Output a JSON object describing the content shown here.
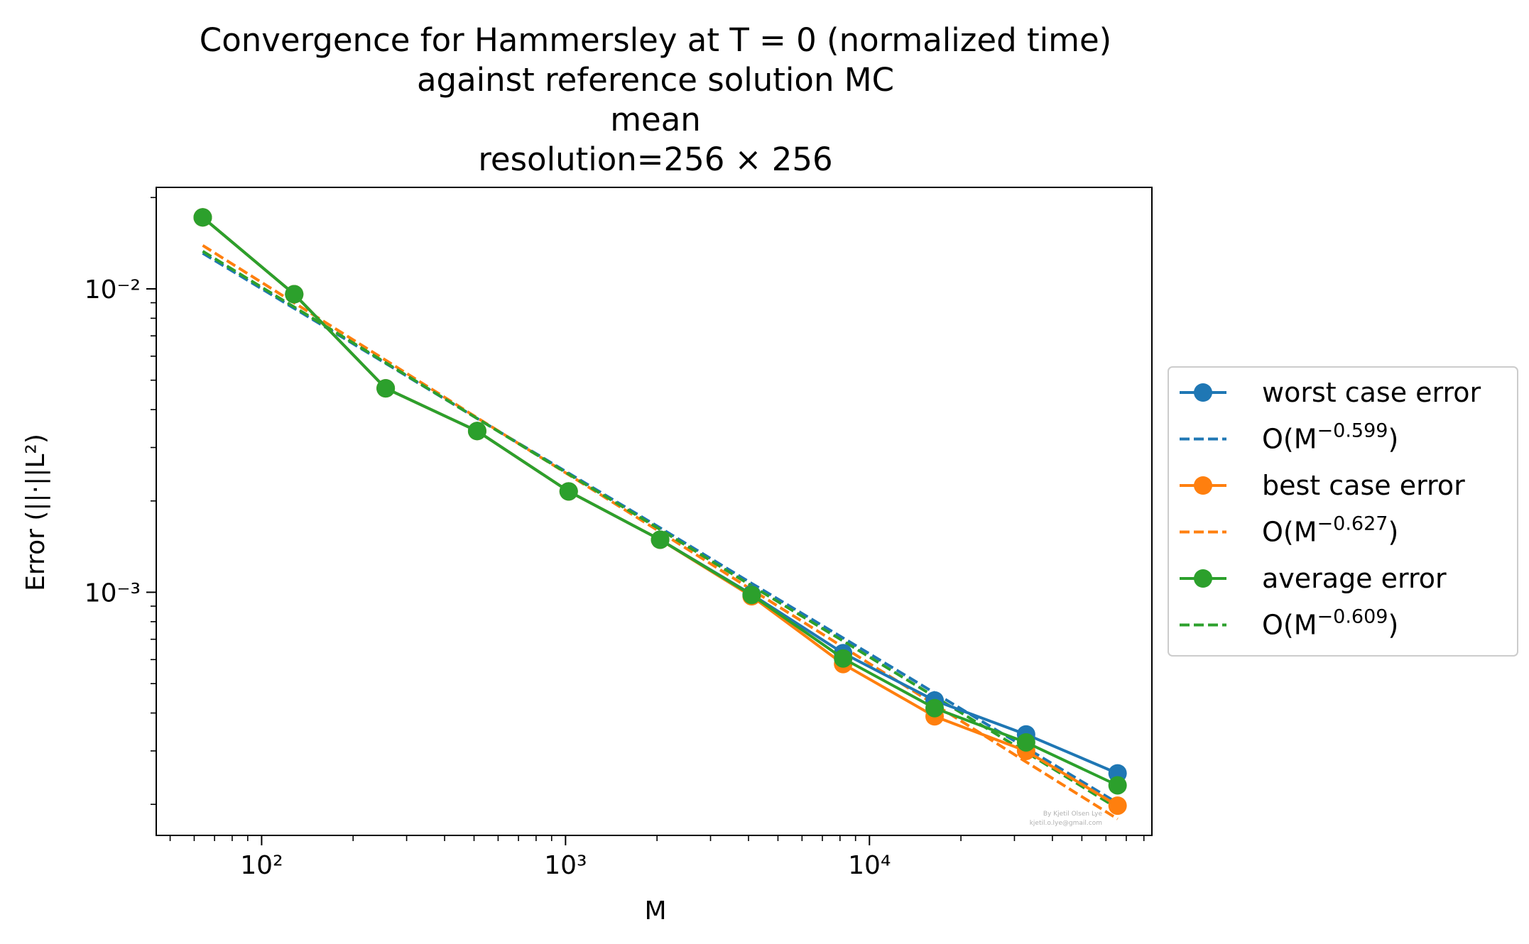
{
  "chart_data": {
    "type": "line",
    "title_lines": [
      "Convergence for Hammersley at T = 0 (normalized time)",
      "against reference solution MC",
      "mean",
      "resolution=256 × 256"
    ],
    "xlabel": "M",
    "ylabel": "Error (||·||L²)",
    "xscale": "log",
    "yscale": "log",
    "xlim": [
      45,
      85000
    ],
    "ylim": [
      0.000158,
      0.0216
    ],
    "x_ticks": [
      100,
      1000,
      10000
    ],
    "x_tick_labels": [
      "10²",
      "10³",
      "10⁴"
    ],
    "y_ticks": [
      0.001,
      0.01
    ],
    "y_tick_labels": [
      "10⁻³",
      "10⁻²"
    ],
    "x": [
      64,
      128,
      256,
      512,
      1024,
      2048,
      4096,
      8192,
      16384,
      32768,
      65536
    ],
    "series": [
      {
        "name": "worst case error",
        "color": "#1f77b4",
        "style": "solid-marker",
        "values": [
          0.0172,
          0.0096,
          0.0047,
          0.0034,
          0.00215,
          0.00149,
          0.000985,
          0.00063,
          0.00044,
          0.00034,
          0.000253
        ]
      },
      {
        "name": "O(M^-0.599)",
        "color": "#1f77b4",
        "style": "dashed",
        "values": [
          0.0131,
          0.00862,
          0.00568,
          0.00374,
          0.00247,
          0.00163,
          0.00107,
          0.000707,
          0.000466,
          0.000307,
          0.000202
        ]
      },
      {
        "name": "best case error",
        "color": "#ff7f0e",
        "style": "solid-marker",
        "values": [
          0.0172,
          0.0096,
          0.0047,
          0.0034,
          0.00215,
          0.00149,
          0.00097,
          0.00058,
          0.00039,
          0.0003,
          0.000198
        ]
      },
      {
        "name": "O(M^-0.627)",
        "color": "#ff7f0e",
        "style": "dashed",
        "values": [
          0.0139,
          0.00899,
          0.00582,
          0.00376,
          0.00244,
          0.00158,
          0.00102,
          0.00066,
          0.000427,
          0.000276,
          0.000179
        ]
      },
      {
        "name": "average error",
        "color": "#2ca02c",
        "style": "solid-marker",
        "values": [
          0.0172,
          0.0096,
          0.0047,
          0.0034,
          0.00215,
          0.00149,
          0.00098,
          0.000605,
          0.000415,
          0.00032,
          0.000231
        ]
      },
      {
        "name": "O(M^-0.609)",
        "color": "#2ca02c",
        "style": "dashed",
        "values": [
          0.0133,
          0.00871,
          0.00571,
          0.00374,
          0.00245,
          0.00161,
          0.00105,
          0.000691,
          0.000453,
          0.000297,
          0.000194
        ]
      }
    ],
    "legend": {
      "placement": "outside-right",
      "entries": [
        {
          "label_prefix": "worst case error",
          "label_exp": ""
        },
        {
          "label_prefix": "O(M",
          "label_exp": "−0.599"
        },
        {
          "label_prefix": "best case error",
          "label_exp": ""
        },
        {
          "label_prefix": "O(M",
          "label_exp": "−0.627"
        },
        {
          "label_prefix": "average error",
          "label_exp": ""
        },
        {
          "label_prefix": "O(M",
          "label_exp": "−0.609"
        }
      ]
    },
    "watermark_lines": [
      "By Kjetil Olsen Lye",
      "kjetil.o.lye@gmail.com"
    ],
    "grid": false
  }
}
